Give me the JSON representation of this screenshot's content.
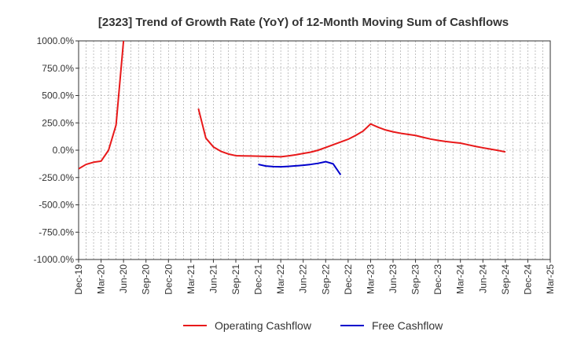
{
  "chart_data": {
    "type": "line",
    "title": "[2323]  Trend of Growth Rate (YoY) of 12-Month Moving Sum of Cashflows",
    "xlabel": "",
    "ylabel": "",
    "ylim": [
      -1000,
      1000
    ],
    "y_ticks": [
      1000,
      750,
      500,
      250,
      0,
      -250,
      -500,
      -750,
      -1000
    ],
    "y_tick_labels": [
      "1000.0%",
      "750.0%",
      "500.0%",
      "250.0%",
      "0.0%",
      "-250.0%",
      "-500.0%",
      "-750.0%",
      "-1000.0%"
    ],
    "x_range": [
      "2019-12",
      "2025-03"
    ],
    "x_tick_labels": [
      "Dec-19",
      "Mar-20",
      "Jun-20",
      "Sep-20",
      "Dec-20",
      "Mar-21",
      "Jun-21",
      "Sep-21",
      "Dec-21",
      "Mar-22",
      "Jun-22",
      "Sep-22",
      "Dec-22",
      "Mar-23",
      "Jun-23",
      "Sep-23",
      "Dec-23",
      "Mar-24",
      "Jun-24",
      "Sep-24",
      "Dec-24",
      "Mar-25"
    ],
    "grid": true,
    "legend_position": "bottom",
    "series": [
      {
        "name": "Operating Cashflow",
        "color": "#e8191a",
        "points": [
          [
            "2019-12",
            -170
          ],
          [
            "2020-01",
            -130
          ],
          [
            "2020-02",
            -110
          ],
          [
            "2020-03",
            -100
          ],
          [
            "2020-04",
            0
          ],
          [
            "2020-05",
            230
          ],
          [
            "2020-06",
            1000
          ]
        ]
      },
      {
        "name": "Operating Cashflow",
        "color": "#e8191a",
        "points": [
          [
            "2021-04",
            380
          ],
          [
            "2021-05",
            110
          ],
          [
            "2021-06",
            30
          ],
          [
            "2021-07",
            -10
          ],
          [
            "2021-08",
            -35
          ],
          [
            "2021-09",
            -50
          ],
          [
            "2021-10",
            -52
          ],
          [
            "2021-11",
            -53
          ],
          [
            "2021-12",
            -55
          ],
          [
            "2022-01",
            -57
          ],
          [
            "2022-02",
            -58
          ],
          [
            "2022-03",
            -60
          ],
          [
            "2022-04",
            -52
          ],
          [
            "2022-05",
            -42
          ],
          [
            "2022-06",
            -30
          ],
          [
            "2022-07",
            -18
          ],
          [
            "2022-08",
            0
          ],
          [
            "2022-09",
            25
          ],
          [
            "2022-10",
            50
          ],
          [
            "2022-11",
            75
          ],
          [
            "2022-12",
            100
          ],
          [
            "2023-01",
            135
          ],
          [
            "2023-02",
            175
          ],
          [
            "2023-03",
            240
          ],
          [
            "2023-04",
            210
          ],
          [
            "2023-05",
            185
          ],
          [
            "2023-06",
            168
          ],
          [
            "2023-07",
            155
          ],
          [
            "2023-08",
            145
          ],
          [
            "2023-09",
            135
          ],
          [
            "2023-10",
            118
          ],
          [
            "2023-11",
            102
          ],
          [
            "2023-12",
            90
          ],
          [
            "2024-01",
            80
          ],
          [
            "2024-02",
            72
          ],
          [
            "2024-03",
            65
          ],
          [
            "2024-04",
            50
          ],
          [
            "2024-05",
            35
          ],
          [
            "2024-06",
            22
          ],
          [
            "2024-07",
            10
          ],
          [
            "2024-08",
            -2
          ],
          [
            "2024-09",
            -15
          ]
        ]
      },
      {
        "name": "Free Cashflow",
        "color": "#0000cc",
        "points": [
          [
            "2021-12",
            -130
          ],
          [
            "2022-01",
            -145
          ],
          [
            "2022-02",
            -150
          ],
          [
            "2022-03",
            -152
          ],
          [
            "2022-04",
            -148
          ],
          [
            "2022-05",
            -143
          ],
          [
            "2022-06",
            -138
          ],
          [
            "2022-07",
            -130
          ],
          [
            "2022-08",
            -120
          ],
          [
            "2022-09",
            -105
          ],
          [
            "2022-10",
            -125
          ],
          [
            "2022-11",
            -225
          ]
        ]
      }
    ],
    "legend": [
      {
        "label": "Operating Cashflow",
        "color": "#e8191a"
      },
      {
        "label": "Free Cashflow",
        "color": "#0000cc"
      }
    ]
  }
}
